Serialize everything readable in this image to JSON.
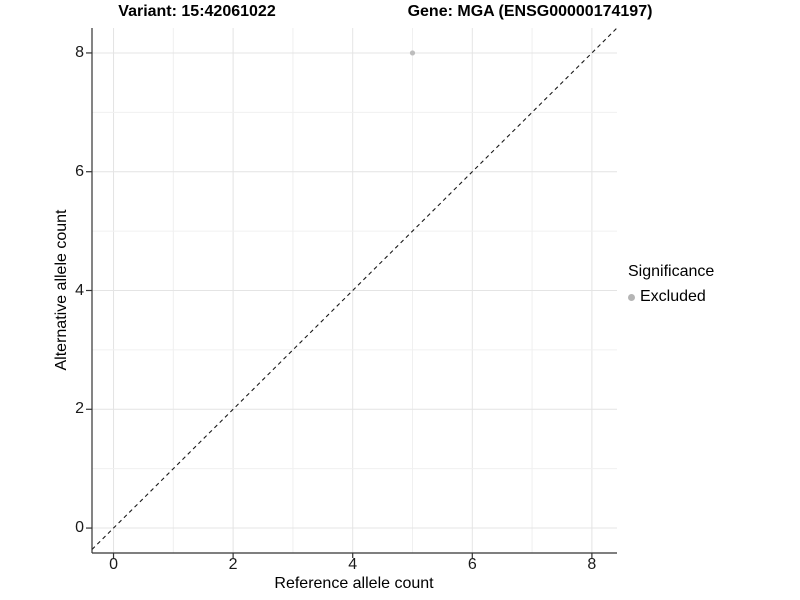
{
  "colors": {
    "grid_major": "#e4e4e4",
    "grid_minor": "#f0f0f0",
    "axis_line": "#333333",
    "tick_mark": "#333333",
    "point": "#bdbdbd",
    "legend_dot": "#b5b5b5",
    "identity_line": "#1a1a1a",
    "text": "#000000"
  },
  "chart_data": {
    "type": "scatter",
    "titles": {
      "left": "Variant: 15:42061022",
      "right": "Gene: MGA (ENSG00000174197)"
    },
    "xlabel": "Reference allele count",
    "ylabel": "Alternative allele count",
    "xlim": [
      -0.36,
      8.42
    ],
    "ylim": [
      -0.42,
      8.42
    ],
    "xticks": [
      0,
      2,
      4,
      6,
      8
    ],
    "yticks": [
      0,
      2,
      4,
      6,
      8
    ],
    "grid": "on",
    "grid_interval": 1,
    "identity_line": {
      "style": "dashed",
      "equation": "y = x"
    },
    "series": [
      {
        "name": "Excluded",
        "points": [
          {
            "x": 5,
            "y": 8
          }
        ]
      }
    ],
    "legend": {
      "title": "Significance",
      "position": "right",
      "items": [
        {
          "label": "Excluded"
        }
      ]
    }
  }
}
